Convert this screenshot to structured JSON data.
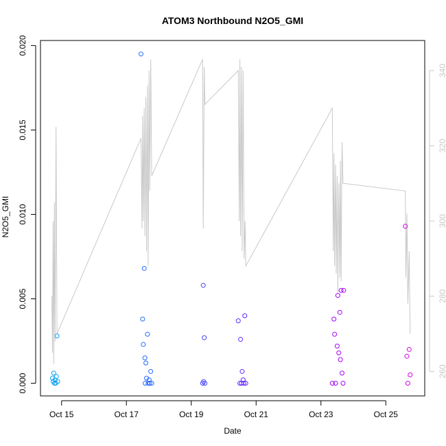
{
  "chart_data": {
    "type": "scatter",
    "title": "ATOM3 Northbound N2O5_GMI",
    "xlabel": "Date",
    "ylabel": "N2O5_GMI",
    "x_ticks": [
      "Oct 15",
      "Oct 17",
      "Oct 19",
      "Oct 21",
      "Oct 23",
      "Oct 25"
    ],
    "y_ticks": [
      "0.000",
      "0.005",
      "0.010",
      "0.015",
      "0.020"
    ],
    "y2_ticks": [
      "260",
      "280",
      "300",
      "320",
      "340"
    ],
    "xlim": [
      14.35,
      26.2
    ],
    "ylim": [
      -0.00075,
      0.0203
    ],
    "y2lim": [
      253.5,
      348
    ],
    "grid": false,
    "colors": {
      "points_start": "#00aaee",
      "points_mid": "#2a5bff",
      "points_late": "#8800ff",
      "points_end": "#dd00dd",
      "secondary_line": "#c8c8c8"
    },
    "series": [
      {
        "type": "scatter",
        "axis": "left",
        "points": [
          [
            14.72,
            0.0003
          ],
          [
            14.74,
            0.0001
          ],
          [
            14.76,
            0.0006
          ],
          [
            14.78,
            0.0
          ],
          [
            14.8,
            0.0002
          ],
          [
            14.82,
            0.0
          ],
          [
            14.84,
            0.0004
          ],
          [
            14.86,
            0.0028
          ],
          [
            14.88,
            0.0001
          ],
          [
            17.45,
            0.0195
          ],
          [
            17.5,
            0.0038
          ],
          [
            17.52,
            0.0023
          ],
          [
            17.55,
            0.0068
          ],
          [
            17.57,
            0.0015
          ],
          [
            17.58,
            0.0
          ],
          [
            17.6,
            0.0012
          ],
          [
            17.62,
            0.0003
          ],
          [
            17.65,
            0.0029
          ],
          [
            17.67,
            0.0
          ],
          [
            17.7,
            0.0002
          ],
          [
            17.72,
            0.0
          ],
          [
            17.75,
            0.0007
          ],
          [
            17.78,
            0.0
          ],
          [
            19.35,
            0.0
          ],
          [
            19.37,
            0.0058
          ],
          [
            19.38,
            0.0001
          ],
          [
            19.4,
            0.0027
          ],
          [
            19.42,
            0.0
          ],
          [
            20.45,
            0.0037
          ],
          [
            20.5,
            0.0
          ],
          [
            20.52,
            0.0026
          ],
          [
            20.55,
            0.0
          ],
          [
            20.57,
            0.0007
          ],
          [
            20.6,
            0.0002
          ],
          [
            20.62,
            0.0
          ],
          [
            20.65,
            0.004
          ],
          [
            20.68,
            0.0
          ],
          [
            23.35,
            0.0
          ],
          [
            23.4,
            0.0038
          ],
          [
            23.42,
            0.0029
          ],
          [
            23.45,
            0.0
          ],
          [
            23.5,
            0.0022
          ],
          [
            23.52,
            0.0052
          ],
          [
            23.55,
            0.0018
          ],
          [
            23.58,
            0.0042
          ],
          [
            23.6,
            0.0014
          ],
          [
            23.62,
            0.0055
          ],
          [
            23.65,
            0.0006
          ],
          [
            23.68,
            0.0
          ],
          [
            23.7,
            0.0055
          ],
          [
            25.6,
            0.0093
          ],
          [
            25.65,
            0.0016
          ],
          [
            25.68,
            0.0
          ],
          [
            25.72,
            0.002
          ],
          [
            25.75,
            0.0005
          ]
        ]
      },
      {
        "type": "line",
        "axis": "right",
        "points": [
          [
            14.7,
            280
          ],
          [
            14.72,
            265
          ],
          [
            14.74,
            300
          ],
          [
            14.76,
            262
          ],
          [
            14.78,
            305
          ],
          [
            14.8,
            268
          ],
          [
            14.83,
            325
          ],
          [
            14.86,
            270
          ],
          [
            17.45,
            322
          ],
          [
            17.48,
            298
          ],
          [
            17.5,
            328
          ],
          [
            17.52,
            300
          ],
          [
            17.55,
            330
          ],
          [
            17.57,
            296
          ],
          [
            17.6,
            333
          ],
          [
            17.62,
            292
          ],
          [
            17.65,
            336
          ],
          [
            17.67,
            288
          ],
          [
            17.7,
            340
          ],
          [
            17.72,
            308
          ],
          [
            17.75,
            343
          ],
          [
            17.78,
            312
          ],
          [
            19.35,
            343
          ],
          [
            19.37,
            298
          ],
          [
            19.4,
            341
          ],
          [
            19.42,
            331
          ],
          [
            20.45,
            340
          ],
          [
            20.48,
            300
          ],
          [
            20.5,
            343
          ],
          [
            20.52,
            296
          ],
          [
            20.55,
            341
          ],
          [
            20.57,
            292
          ],
          [
            20.6,
            340
          ],
          [
            20.63,
            290
          ],
          [
            20.66,
            300
          ],
          [
            20.68,
            288
          ],
          [
            23.35,
            330
          ],
          [
            23.38,
            292
          ],
          [
            23.4,
            318
          ],
          [
            23.42,
            288
          ],
          [
            23.45,
            315
          ],
          [
            23.47,
            286
          ],
          [
            23.5,
            312
          ],
          [
            23.52,
            281
          ],
          [
            23.55,
            310
          ],
          [
            23.58,
            285
          ],
          [
            23.6,
            316
          ],
          [
            23.62,
            284
          ],
          [
            23.65,
            321
          ],
          [
            23.68,
            310
          ],
          [
            23.7,
            310
          ],
          [
            25.6,
            308
          ],
          [
            25.62,
            285
          ],
          [
            25.65,
            302
          ],
          [
            25.68,
            278
          ],
          [
            25.72,
            292
          ],
          [
            25.75,
            270
          ]
        ]
      }
    ]
  }
}
